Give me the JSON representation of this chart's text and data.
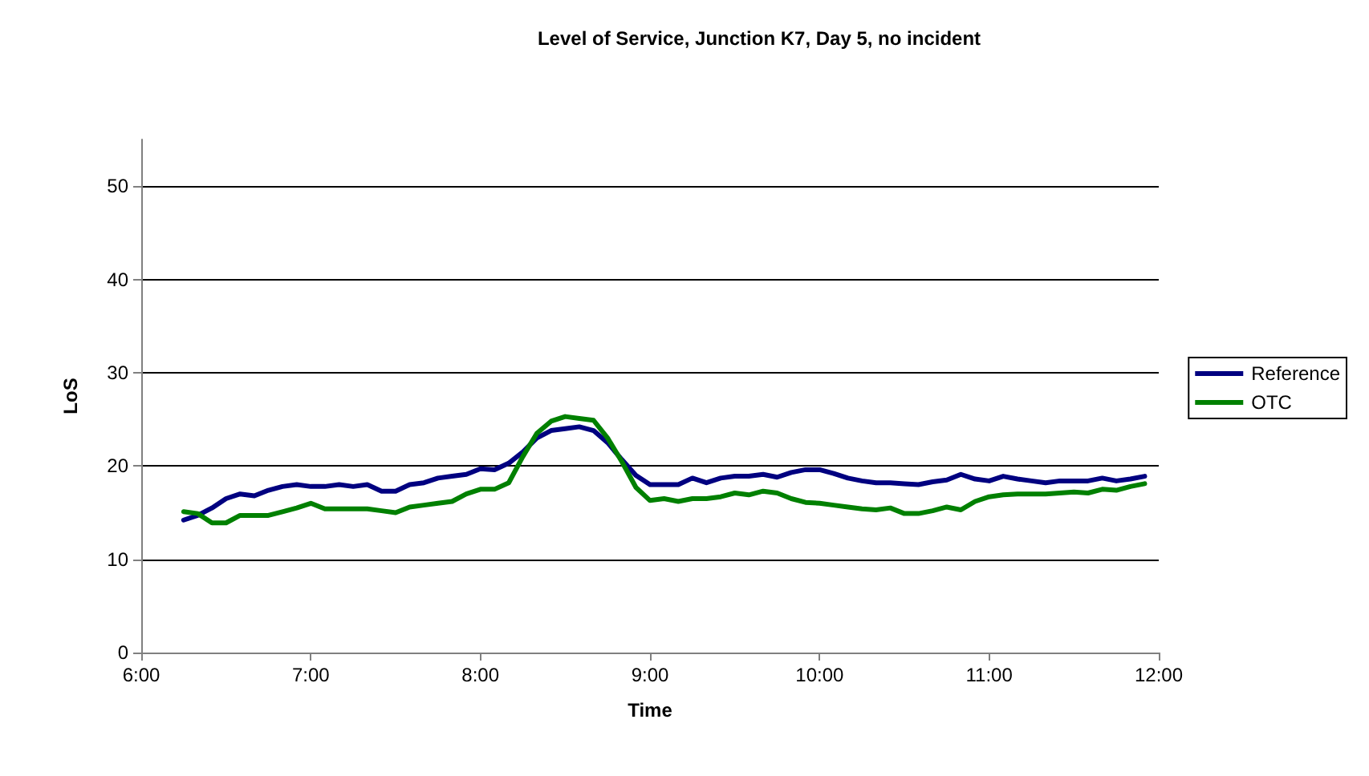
{
  "chart_data": {
    "type": "line",
    "title": "Level of Service, Junction K7, Day 5, no incident",
    "xlabel": "Time",
    "ylabel": "LoS",
    "x": [
      6.25,
      6.333,
      6.417,
      6.5,
      6.583,
      6.667,
      6.75,
      6.833,
      6.917,
      7,
      7.083,
      7.167,
      7.25,
      7.333,
      7.417,
      7.5,
      7.583,
      7.667,
      7.75,
      7.833,
      7.917,
      8,
      8.083,
      8.167,
      8.25,
      8.333,
      8.417,
      8.5,
      8.583,
      8.667,
      8.75,
      8.833,
      8.917,
      9,
      9.083,
      9.167,
      9.25,
      9.333,
      9.417,
      9.5,
      9.583,
      9.667,
      9.75,
      9.833,
      9.917,
      10,
      10.083,
      10.167,
      10.25,
      10.333,
      10.417,
      10.5,
      10.583,
      10.667,
      10.75,
      10.833,
      10.917,
      11,
      11.083,
      11.167,
      11.25,
      11.333,
      11.417,
      11.5,
      11.583,
      11.667,
      11.75,
      11.833,
      11.917
    ],
    "series": [
      {
        "name": "Reference",
        "color": "#000080",
        "values": [
          14.2,
          14.7,
          15.5,
          16.5,
          17,
          16.8,
          17.4,
          17.8,
          18,
          17.8,
          17.8,
          18,
          17.8,
          18,
          17.3,
          17.3,
          18,
          18.2,
          18.7,
          18.9,
          19.1,
          19.7,
          19.6,
          20.3,
          21.5,
          23,
          23.8,
          24,
          24.2,
          23.8,
          22.5,
          20.7,
          19,
          18,
          18,
          18,
          18.7,
          18.2,
          18.7,
          18.9,
          18.9,
          19.1,
          18.8,
          19.3,
          19.6,
          19.6,
          19.2,
          18.7,
          18.4,
          18.2,
          18.2,
          18.1,
          18,
          18.3,
          18.5,
          19.1,
          18.6,
          18.4,
          18.9,
          18.6,
          18.4,
          18.2,
          18.4,
          18.4,
          18.4,
          18.7,
          18.4,
          18.6,
          18.9
        ]
      },
      {
        "name": "OTC",
        "color": "#008000",
        "values": [
          15.1,
          14.9,
          13.9,
          13.9,
          14.7,
          14.7,
          14.7,
          15.1,
          15.5,
          16,
          15.4,
          15.4,
          15.4,
          15.4,
          15.2,
          15,
          15.6,
          15.8,
          16,
          16.2,
          17,
          17.5,
          17.5,
          18.2,
          21,
          23.5,
          24.8,
          25.3,
          25.1,
          24.9,
          23,
          20.5,
          17.7,
          16.3,
          16.5,
          16.2,
          16.5,
          16.5,
          16.7,
          17.1,
          16.9,
          17.3,
          17.1,
          16.5,
          16.1,
          16,
          15.8,
          15.6,
          15.4,
          15.3,
          15.5,
          14.9,
          14.9,
          15.2,
          15.6,
          15.3,
          16.2,
          16.7,
          16.9,
          17,
          17,
          17,
          17.1,
          17.2,
          17.1,
          17.5,
          17.4,
          17.8,
          18.1
        ]
      }
    ],
    "xlim": [
      6,
      12
    ],
    "xticks": [
      {
        "value": 6,
        "label": "6:00"
      },
      {
        "value": 7,
        "label": "7:00"
      },
      {
        "value": 8,
        "label": "8:00"
      },
      {
        "value": 9,
        "label": "9:00"
      },
      {
        "value": 10,
        "label": "10:00"
      },
      {
        "value": 11,
        "label": "11:00"
      },
      {
        "value": 12,
        "label": "12:00"
      }
    ],
    "ylim": [
      0,
      55
    ],
    "yticks": [
      0,
      10,
      20,
      30,
      40,
      50
    ],
    "grid": "y",
    "legend": "right",
    "marker": "none",
    "line_style": "solid"
  }
}
